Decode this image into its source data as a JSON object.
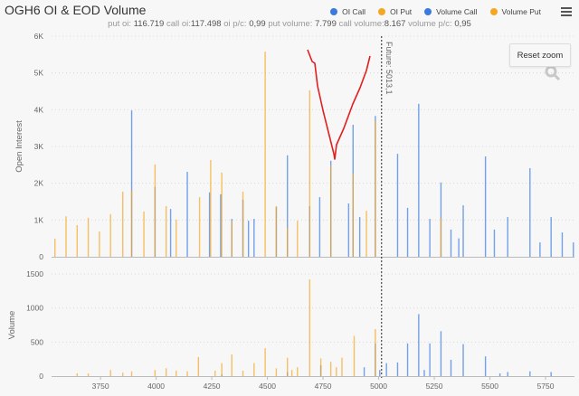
{
  "title": "OGH6 OI & EOD Volume",
  "legend": [
    {
      "label": "OI Call",
      "color": "#3a7be0"
    },
    {
      "label": "OI Put",
      "color": "#f5a623"
    },
    {
      "label": "Volume Call",
      "color": "#3a7be0"
    },
    {
      "label": "Volume Put",
      "color": "#f5a623"
    }
  ],
  "stats": {
    "put_oi_label": "put oi:",
    "put_oi": "116.719",
    "call_oi_label": "call oi:",
    "call_oi": "117.498",
    "oi_pc_label": "oi p/c:",
    "oi_pc": "0,99",
    "put_volume_label": "put volume:",
    "put_volume": "7.799",
    "call_volume_label": "call volume:",
    "call_volume": "8.167",
    "volume_pc_label": "volume p/c:",
    "volume_pc": "0,95"
  },
  "reset_zoom_label": "Reset zoom",
  "future_label": "Future: 5013,1",
  "icons": {
    "menu": "hamburger-menu-icon",
    "zoom": "magnifier-icon"
  },
  "chart_data": [
    {
      "type": "bar",
      "ylabel": "Open Interest",
      "ylim": [
        0,
        6000
      ],
      "yticks": [
        "0",
        "1K",
        "2K",
        "3K",
        "4K",
        "5K",
        "6K"
      ],
      "xlim": [
        3530,
        5880
      ],
      "grid": true,
      "future": 5013.1,
      "series": [
        {
          "name": "OI Call",
          "color": "#3a7be0",
          "x": [
            3890,
            3995,
            4065,
            4140,
            4240,
            4290,
            4340,
            4390,
            4415,
            4440,
            4540,
            4590,
            4690,
            4735,
            4785,
            4865,
            4885,
            4915,
            4985,
            5085,
            5130,
            5180,
            5230,
            5280,
            5325,
            5360,
            5380,
            5480,
            5520,
            5580,
            5680,
            5725,
            5775,
            5825,
            5875
          ],
          "y": [
            3980,
            1900,
            1300,
            2310,
            1750,
            1700,
            1030,
            1550,
            980,
            1030,
            1350,
            2760,
            1380,
            1620,
            2610,
            1450,
            3590,
            1080,
            3830,
            2800,
            1330,
            4160,
            1030,
            2020,
            740,
            500,
            1400,
            2730,
            740,
            1080,
            2410,
            390,
            1080,
            660,
            390
          ]
        },
        {
          "name": "OI Put",
          "color": "#f5a623",
          "x": [
            3545,
            3595,
            3645,
            3695,
            3745,
            3795,
            3850,
            3890,
            3945,
            3995,
            4045,
            4090,
            4195,
            4245,
            4295,
            4340,
            4390,
            4490,
            4540,
            4590,
            4635,
            4690,
            4785,
            4885,
            4945,
            4985,
            5280
          ],
          "y": [
            490,
            1100,
            860,
            1060,
            690,
            1160,
            1770,
            1820,
            1230,
            2510,
            1380,
            1010,
            1620,
            2630,
            2290,
            980,
            1770,
            5580,
            1380,
            790,
            980,
            4530,
            2480,
            2260,
            1250,
            3700,
            1050
          ]
        }
      ]
    },
    {
      "type": "bar",
      "ylabel": "Volume",
      "ylim": [
        0,
        1500
      ],
      "yticks": [
        "0",
        "500",
        "1000",
        "1500"
      ],
      "xticks": [
        "3750",
        "4000",
        "4250",
        "4500",
        "4750",
        "5000",
        "5250",
        "5500",
        "5750"
      ],
      "xlim": [
        3530,
        5880
      ],
      "grid": true,
      "series": [
        {
          "name": "Volume Call",
          "color": "#3a7be0",
          "x": [
            4295,
            4590,
            4740,
            4935,
            4985,
            5005,
            5035,
            5085,
            5130,
            5180,
            5205,
            5230,
            5280,
            5325,
            5380,
            5480,
            5545,
            5580,
            5680,
            5775
          ],
          "y": [
            25,
            60,
            160,
            130,
            480,
            90,
            190,
            200,
            480,
            910,
            90,
            480,
            660,
            240,
            470,
            290,
            40,
            60,
            70,
            60
          ]
        },
        {
          "name": "Volume Put",
          "color": "#f5a623",
          "x": [
            3645,
            3695,
            3795,
            3850,
            3890,
            3995,
            4045,
            4090,
            4140,
            4190,
            4265,
            4295,
            4340,
            4390,
            4440,
            4490,
            4540,
            4590,
            4610,
            4635,
            4690,
            4740,
            4785,
            4810,
            4835,
            4890,
            4985
          ],
          "y": [
            40,
            40,
            90,
            50,
            70,
            90,
            115,
            80,
            70,
            280,
            80,
            190,
            320,
            80,
            190,
            410,
            115,
            270,
            90,
            130,
            1420,
            260,
            210,
            130,
            270,
            590,
            690
          ]
        }
      ]
    }
  ]
}
